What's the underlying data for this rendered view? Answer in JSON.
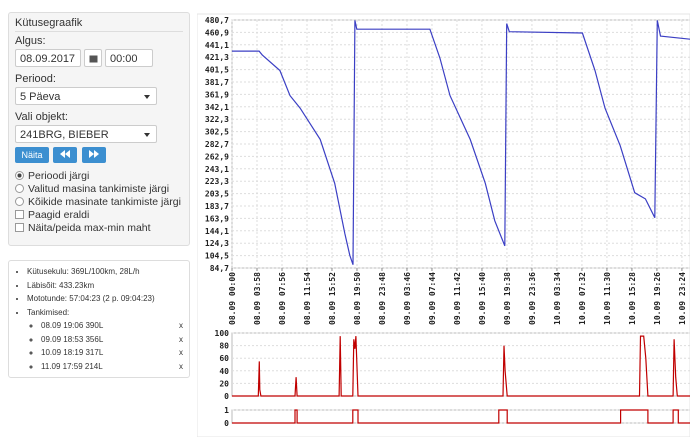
{
  "sidebar": {
    "title": "Kütusegraafik",
    "start_label": "Algus:",
    "start_date": "08.09.2017",
    "start_time": "00:00",
    "period_label": "Periood:",
    "period": "5 Päeva",
    "object_label": "Vali objekt:",
    "object": "241BRG, BIEBER",
    "show_button": "Näita",
    "radios": [
      "Perioodi järgi",
      "Valitud masina tankimiste järgi",
      "Kõikide masinate tankimiste järgi"
    ],
    "radio_selected": 0,
    "checkboxes": [
      "Paagid eraldi",
      "Näita/peida max-min maht"
    ]
  },
  "summary": {
    "items": [
      "Kütusekulu: 369L/100km, 28L/h",
      "Läbisõit: 433.23km",
      "Mototunde: 57:04:23 (2 p. 09:04:23)",
      "Tankimised:"
    ],
    "refuels": [
      {
        "text": "08.09 19:06 390L",
        "remove": "x"
      },
      {
        "text": "09.09 18:53 356L",
        "remove": "x"
      },
      {
        "text": "10.09 18:19 317L",
        "remove": "x"
      },
      {
        "text": "11.09 17:59 214L",
        "remove": "x"
      }
    ]
  },
  "chart_data": [
    {
      "type": "line",
      "x": [
        0,
        258,
        288,
        456,
        552,
        648,
        840,
        978,
        1074,
        1122,
        1152,
        1170,
        1188,
        1884,
        1980,
        2076,
        2268,
        2412,
        2502,
        2598,
        2616,
        2640,
        3336,
        3456,
        3552,
        3696,
        3834,
        3936,
        4026,
        4050,
        4080,
        4362
      ],
      "series": [
        {
          "color": "#3b3fc4",
          "values": [
            431,
            431,
            425,
            400,
            360,
            340,
            290,
            220,
            140,
            105,
            90,
            480,
            466,
            466,
            420,
            360,
            290,
            220,
            160,
            120,
            475,
            462,
            460,
            400,
            340,
            280,
            205,
            195,
            165,
            480,
            455,
            450
          ]
        }
      ],
      "xlim": [
        0,
        4380
      ],
      "xticks": [
        {
          "value": 0,
          "label": "08.09 00:00"
        },
        {
          "value": 238,
          "label": "08.09 03:58"
        },
        {
          "value": 476,
          "label": "08.09 07:56"
        },
        {
          "value": 714,
          "label": "08.09 11:54"
        },
        {
          "value": 952,
          "label": "08.09 15:52"
        },
        {
          "value": 1190,
          "label": "08.09 19:50"
        },
        {
          "value": 1428,
          "label": "08.09 23:48"
        },
        {
          "value": 1666,
          "label": "09.09 03:46"
        },
        {
          "value": 1904,
          "label": "09.09 07:44"
        },
        {
          "value": 2142,
          "label": "09.09 11:42"
        },
        {
          "value": 2380,
          "label": "09.09 15:40"
        },
        {
          "value": 2618,
          "label": "09.09 19:38"
        },
        {
          "value": 2856,
          "label": "09.09 23:36"
        },
        {
          "value": 3094,
          "label": "10.09 03:34"
        },
        {
          "value": 3332,
          "label": "10.09 07:32"
        },
        {
          "value": 3570,
          "label": "10.09 11:30"
        },
        {
          "value": 3808,
          "label": "10.09 15:28"
        },
        {
          "value": 4046,
          "label": "10.09 19:26"
        },
        {
          "value": 4284,
          "label": "10.09 23:24"
        }
      ],
      "ylim": [
        84.7,
        480.7
      ],
      "yticks": [
        {
          "value": 84.7,
          "label": "84,7"
        },
        {
          "value": 104.5,
          "label": "104,5"
        },
        {
          "value": 124.3,
          "label": "124,3"
        },
        {
          "value": 144.1,
          "label": "144,1"
        },
        {
          "value": 163.9,
          "label": "163,9"
        },
        {
          "value": 183.7,
          "label": "183,7"
        },
        {
          "value": 203.5,
          "label": "203,5"
        },
        {
          "value": 223.3,
          "label": "223,3"
        },
        {
          "value": 243.1,
          "label": "243,1"
        },
        {
          "value": 262.9,
          "label": "262,9"
        },
        {
          "value": 282.7,
          "label": "282,7"
        },
        {
          "value": 302.5,
          "label": "302,5"
        },
        {
          "value": 322.3,
          "label": "322,3"
        },
        {
          "value": 342.1,
          "label": "342,1"
        },
        {
          "value": 361.9,
          "label": "361,9"
        },
        {
          "value": 381.7,
          "label": "381,7"
        },
        {
          "value": 401.5,
          "label": "401,5"
        },
        {
          "value": 421.3,
          "label": "421,3"
        },
        {
          "value": 441.1,
          "label": "441,1"
        },
        {
          "value": 460.9,
          "label": "460,9"
        },
        {
          "value": 480.7,
          "label": "480,7"
        }
      ],
      "grid": true
    },
    {
      "type": "line",
      "x": [
        0,
        250,
        260,
        265,
        275,
        600,
        610,
        620,
        1020,
        1030,
        1040,
        1150,
        1160,
        1170,
        1180,
        1200,
        2580,
        2590,
        2600,
        2620,
        3880,
        3890,
        3920,
        3940,
        3960,
        4200,
        4210,
        4225,
        4240,
        4380
      ],
      "series": [
        {
          "color": "#c00000",
          "values": [
            0,
            0,
            55,
            10,
            0,
            0,
            30,
            0,
            0,
            95,
            0,
            0,
            90,
            75,
            95,
            0,
            0,
            80,
            40,
            0,
            0,
            95,
            95,
            60,
            0,
            0,
            90,
            30,
            0,
            0
          ]
        }
      ],
      "xlim": [
        0,
        4380
      ],
      "ylim": [
        0,
        100
      ],
      "yticks": [
        0,
        20,
        40,
        60,
        80,
        100
      ],
      "grid": true
    },
    {
      "type": "line",
      "x": [
        0,
        600,
        600,
        620,
        620,
        1150,
        1150,
        1200,
        1200,
        2540,
        2540,
        2620,
        2620,
        3700,
        3700,
        3960,
        3960,
        4200,
        4200,
        4250,
        4250,
        4380
      ],
      "series": [
        {
          "color": "#c00000",
          "values": [
            0,
            0,
            1,
            1,
            0,
            0,
            1,
            1,
            0,
            0,
            1,
            1,
            0,
            0,
            1,
            1,
            0,
            0,
            1,
            1,
            0,
            0
          ]
        }
      ],
      "xlim": [
        0,
        4380
      ],
      "ylim": [
        0,
        1
      ],
      "yticks": [
        0,
        1
      ],
      "grid": true
    }
  ]
}
